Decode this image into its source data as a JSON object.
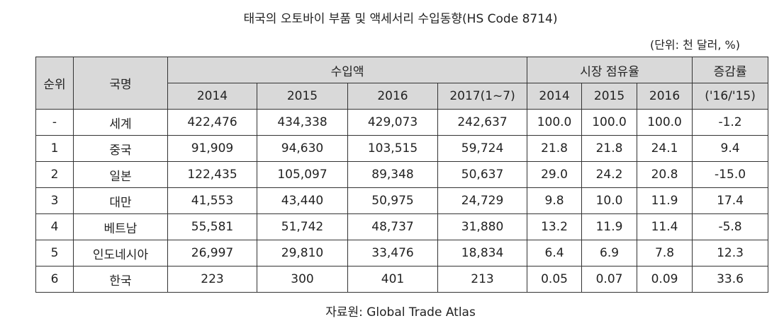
{
  "title": "태국의 오토바이 부품 및 액세서리 수입동향(HS Code 8714)",
  "unit": "(단위: 천 달러, %)",
  "table": {
    "header": {
      "rank": "순위",
      "country": "국명",
      "imports": "수입액",
      "share": "시장 점유율",
      "change": "증감률",
      "import_years": [
        "2014",
        "2015",
        "2016",
        "2017(1~7)"
      ],
      "share_years": [
        "2014",
        "2015",
        "2016"
      ],
      "change_period": "('16/'15)"
    },
    "rows": [
      [
        "-",
        "세계",
        "422,476",
        "434,338",
        "429,073",
        "242,637",
        "100.0",
        "100.0",
        "100.0",
        "-1.2"
      ],
      [
        "1",
        "중국",
        "91,909",
        "94,630",
        "103,515",
        "59,724",
        "21.8",
        "21.8",
        "24.1",
        "9.4"
      ],
      [
        "2",
        "일본",
        "122,435",
        "105,097",
        "89,348",
        "50,637",
        "29.0",
        "24.2",
        "20.8",
        "-15.0"
      ],
      [
        "3",
        "대만",
        "41,553",
        "43,440",
        "50,975",
        "24,729",
        "9.8",
        "10.0",
        "11.9",
        "17.4"
      ],
      [
        "4",
        "베트남",
        "55,581",
        "51,742",
        "48,737",
        "31,880",
        "13.2",
        "11.9",
        "11.4",
        "-5.8"
      ],
      [
        "5",
        "인도네시아",
        "26,997",
        "29,810",
        "33,476",
        "18,834",
        "6.4",
        "6.9",
        "7.8",
        "12.3"
      ],
      [
        "6",
        "한국",
        "223",
        "300",
        "401",
        "213",
        "0.05",
        "0.07",
        "0.09",
        "33.6"
      ]
    ]
  },
  "source": "자료원: Global Trade Atlas"
}
